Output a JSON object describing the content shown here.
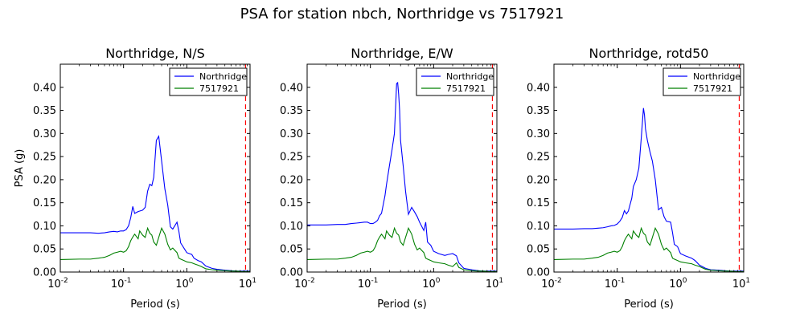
{
  "figure_title": "PSA for station nbch, Northridge vs 7517921",
  "chart_data": [
    {
      "type": "line",
      "title": "Northridge, N/S",
      "xlabel": "Period (s)",
      "ylabel": "PSA (g)",
      "xscale": "log",
      "xlim": [
        0.01,
        10
      ],
      "ylim": [
        0,
        0.45
      ],
      "yticks": [
        "0.00",
        "0.05",
        "0.10",
        "0.15",
        "0.20",
        "0.25",
        "0.30",
        "0.35",
        "0.40"
      ],
      "xticks": [
        {
          "base": "10",
          "exp": "-2"
        },
        {
          "base": "10",
          "exp": "-1"
        },
        {
          "base": "10",
          "exp": "0"
        },
        {
          "base": "10",
          "exp": "1"
        }
      ],
      "legend": "top-right",
      "vline": {
        "x": 8.5,
        "color": "#ff0000",
        "style": "dashed"
      },
      "series": [
        {
          "name": "Northridge",
          "color": "#0000ff",
          "x": [
            0.01,
            0.02,
            0.03,
            0.04,
            0.05,
            0.06,
            0.07,
            0.08,
            0.09,
            0.1,
            0.11,
            0.12,
            0.13,
            0.14,
            0.15,
            0.17,
            0.18,
            0.2,
            0.22,
            0.24,
            0.26,
            0.28,
            0.3,
            0.33,
            0.36,
            0.4,
            0.45,
            0.5,
            0.55,
            0.6,
            0.7,
            0.75,
            0.8,
            0.9,
            1.0,
            1.2,
            1.3,
            1.5,
            1.7,
            2.0,
            2.5,
            3.0,
            4.0,
            5.0,
            6.0,
            7.5,
            8.5,
            10
          ],
          "y": [
            0.085,
            0.085,
            0.085,
            0.084,
            0.085,
            0.087,
            0.088,
            0.087,
            0.089,
            0.089,
            0.092,
            0.1,
            0.118,
            0.142,
            0.127,
            0.131,
            0.132,
            0.134,
            0.14,
            0.175,
            0.19,
            0.187,
            0.205,
            0.285,
            0.294,
            0.24,
            0.18,
            0.145,
            0.098,
            0.093,
            0.108,
            0.088,
            0.063,
            0.052,
            0.042,
            0.038,
            0.03,
            0.025,
            0.022,
            0.013,
            0.008,
            0.006,
            0.004,
            0.003,
            0.002,
            0.002,
            0.002,
            0.002
          ]
        },
        {
          "name": "7517921",
          "color": "#008000",
          "x": [
            0.01,
            0.02,
            0.03,
            0.04,
            0.05,
            0.06,
            0.07,
            0.08,
            0.09,
            0.1,
            0.11,
            0.12,
            0.13,
            0.14,
            0.15,
            0.17,
            0.18,
            0.2,
            0.22,
            0.24,
            0.26,
            0.28,
            0.3,
            0.33,
            0.36,
            0.4,
            0.45,
            0.5,
            0.55,
            0.6,
            0.7,
            0.75,
            0.8,
            0.9,
            1.0,
            1.2,
            1.3,
            1.5,
            1.7,
            2.0,
            2.5,
            3.0,
            4.0,
            5.0,
            6.0,
            7.5,
            8.5,
            10
          ],
          "y": [
            0.027,
            0.028,
            0.028,
            0.03,
            0.032,
            0.036,
            0.041,
            0.043,
            0.045,
            0.043,
            0.046,
            0.055,
            0.068,
            0.076,
            0.082,
            0.072,
            0.089,
            0.08,
            0.075,
            0.095,
            0.084,
            0.08,
            0.065,
            0.058,
            0.075,
            0.095,
            0.082,
            0.06,
            0.048,
            0.052,
            0.042,
            0.03,
            0.028,
            0.025,
            0.022,
            0.02,
            0.018,
            0.015,
            0.012,
            0.007,
            0.005,
            0.004,
            0.003,
            0.002,
            0.002,
            0.001,
            0.001,
            0.001
          ]
        }
      ]
    },
    {
      "type": "line",
      "title": "Northridge, E/W",
      "xlabel": "Period (s)",
      "ylabel": "",
      "xscale": "log",
      "xlim": [
        0.01,
        10
      ],
      "ylim": [
        0,
        0.45
      ],
      "yticks": [
        "0.00",
        "0.05",
        "0.10",
        "0.15",
        "0.20",
        "0.25",
        "0.30",
        "0.35",
        "0.40"
      ],
      "xticks": [
        {
          "base": "10",
          "exp": "-2"
        },
        {
          "base": "10",
          "exp": "-1"
        },
        {
          "base": "10",
          "exp": "0"
        },
        {
          "base": "10",
          "exp": "1"
        }
      ],
      "legend": "top-right",
      "vline": {
        "x": 8.5,
        "color": "#ff0000",
        "style": "dashed"
      },
      "series": [
        {
          "name": "Northridge",
          "color": "#0000ff",
          "x": [
            0.01,
            0.02,
            0.03,
            0.04,
            0.05,
            0.06,
            0.07,
            0.08,
            0.09,
            0.1,
            0.11,
            0.12,
            0.13,
            0.14,
            0.15,
            0.17,
            0.18,
            0.2,
            0.22,
            0.24,
            0.26,
            0.27,
            0.28,
            0.29,
            0.3,
            0.33,
            0.36,
            0.4,
            0.45,
            0.5,
            0.55,
            0.6,
            0.7,
            0.75,
            0.8,
            0.9,
            1.0,
            1.2,
            1.5,
            1.7,
            2.0,
            2.3,
            2.5,
            3.0,
            4.0,
            5.0,
            6.0,
            7.5,
            8.5,
            10
          ],
          "y": [
            0.102,
            0.102,
            0.103,
            0.103,
            0.105,
            0.106,
            0.107,
            0.108,
            0.108,
            0.105,
            0.105,
            0.108,
            0.112,
            0.122,
            0.127,
            0.165,
            0.19,
            0.23,
            0.265,
            0.3,
            0.408,
            0.41,
            0.385,
            0.35,
            0.285,
            0.23,
            0.175,
            0.125,
            0.14,
            0.13,
            0.12,
            0.108,
            0.09,
            0.108,
            0.065,
            0.058,
            0.045,
            0.04,
            0.036,
            0.038,
            0.04,
            0.035,
            0.02,
            0.008,
            0.005,
            0.003,
            0.002,
            0.002,
            0.002,
            0.002
          ]
        },
        {
          "name": "7517921",
          "color": "#008000",
          "x": [
            0.01,
            0.02,
            0.03,
            0.04,
            0.05,
            0.06,
            0.07,
            0.08,
            0.09,
            0.1,
            0.11,
            0.12,
            0.13,
            0.14,
            0.15,
            0.17,
            0.18,
            0.2,
            0.22,
            0.24,
            0.26,
            0.28,
            0.3,
            0.33,
            0.36,
            0.4,
            0.45,
            0.5,
            0.55,
            0.6,
            0.7,
            0.75,
            0.8,
            0.9,
            1.0,
            1.2,
            1.5,
            1.7,
            2.0,
            2.3,
            2.5,
            3.0,
            4.0,
            5.0,
            6.0,
            7.5,
            8.5,
            10
          ],
          "y": [
            0.027,
            0.028,
            0.028,
            0.03,
            0.032,
            0.036,
            0.041,
            0.043,
            0.045,
            0.043,
            0.046,
            0.055,
            0.068,
            0.076,
            0.082,
            0.072,
            0.089,
            0.08,
            0.075,
            0.095,
            0.084,
            0.08,
            0.065,
            0.058,
            0.075,
            0.095,
            0.082,
            0.06,
            0.048,
            0.052,
            0.042,
            0.03,
            0.028,
            0.025,
            0.022,
            0.02,
            0.018,
            0.015,
            0.012,
            0.02,
            0.01,
            0.005,
            0.003,
            0.002,
            0.002,
            0.001,
            0.001,
            0.001
          ]
        }
      ]
    },
    {
      "type": "line",
      "title": "Northridge, rotd50",
      "xlabel": "Period (s)",
      "ylabel": "",
      "xscale": "log",
      "xlim": [
        0.01,
        10
      ],
      "ylim": [
        0,
        0.45
      ],
      "yticks": [
        "0.00",
        "0.05",
        "0.10",
        "0.15",
        "0.20",
        "0.25",
        "0.30",
        "0.35",
        "0.40"
      ],
      "xticks": [
        {
          "base": "10",
          "exp": "-2"
        },
        {
          "base": "10",
          "exp": "-1"
        },
        {
          "base": "10",
          "exp": "0"
        },
        {
          "base": "10",
          "exp": "1"
        }
      ],
      "legend": "top-right",
      "vline": {
        "x": 8.5,
        "color": "#ff0000",
        "style": "dashed"
      },
      "series": [
        {
          "name": "Northridge",
          "color": "#0000ff",
          "x": [
            0.01,
            0.02,
            0.03,
            0.04,
            0.05,
            0.06,
            0.07,
            0.08,
            0.09,
            0.1,
            0.11,
            0.12,
            0.13,
            0.14,
            0.15,
            0.17,
            0.18,
            0.2,
            0.22,
            0.24,
            0.26,
            0.27,
            0.28,
            0.3,
            0.33,
            0.36,
            0.4,
            0.45,
            0.5,
            0.55,
            0.6,
            0.7,
            0.75,
            0.8,
            0.9,
            1.0,
            1.2,
            1.5,
            1.7,
            2.0,
            2.5,
            3.0,
            4.0,
            5.0,
            6.0,
            7.5,
            8.5,
            10
          ],
          "y": [
            0.093,
            0.093,
            0.094,
            0.094,
            0.095,
            0.096,
            0.098,
            0.1,
            0.101,
            0.104,
            0.11,
            0.118,
            0.133,
            0.126,
            0.132,
            0.16,
            0.185,
            0.2,
            0.225,
            0.29,
            0.355,
            0.34,
            0.31,
            0.285,
            0.26,
            0.24,
            0.2,
            0.135,
            0.14,
            0.12,
            0.11,
            0.108,
            0.085,
            0.06,
            0.055,
            0.04,
            0.035,
            0.03,
            0.025,
            0.015,
            0.008,
            0.005,
            0.004,
            0.003,
            0.002,
            0.002,
            0.002,
            0.002
          ]
        },
        {
          "name": "7517921",
          "color": "#008000",
          "x": [
            0.01,
            0.02,
            0.03,
            0.04,
            0.05,
            0.06,
            0.07,
            0.08,
            0.09,
            0.1,
            0.11,
            0.12,
            0.13,
            0.14,
            0.15,
            0.17,
            0.18,
            0.2,
            0.22,
            0.24,
            0.26,
            0.28,
            0.3,
            0.33,
            0.36,
            0.4,
            0.45,
            0.5,
            0.55,
            0.6,
            0.7,
            0.75,
            0.8,
            0.9,
            1.0,
            1.2,
            1.5,
            1.7,
            2.0,
            2.5,
            3.0,
            4.0,
            5.0,
            6.0,
            7.5,
            8.5,
            10
          ],
          "y": [
            0.027,
            0.028,
            0.028,
            0.03,
            0.032,
            0.036,
            0.041,
            0.043,
            0.045,
            0.043,
            0.046,
            0.055,
            0.068,
            0.076,
            0.082,
            0.072,
            0.089,
            0.08,
            0.075,
            0.095,
            0.084,
            0.08,
            0.065,
            0.058,
            0.075,
            0.095,
            0.082,
            0.06,
            0.048,
            0.052,
            0.042,
            0.03,
            0.028,
            0.025,
            0.022,
            0.02,
            0.018,
            0.015,
            0.012,
            0.006,
            0.004,
            0.003,
            0.002,
            0.002,
            0.001,
            0.001,
            0.001
          ]
        }
      ]
    }
  ]
}
